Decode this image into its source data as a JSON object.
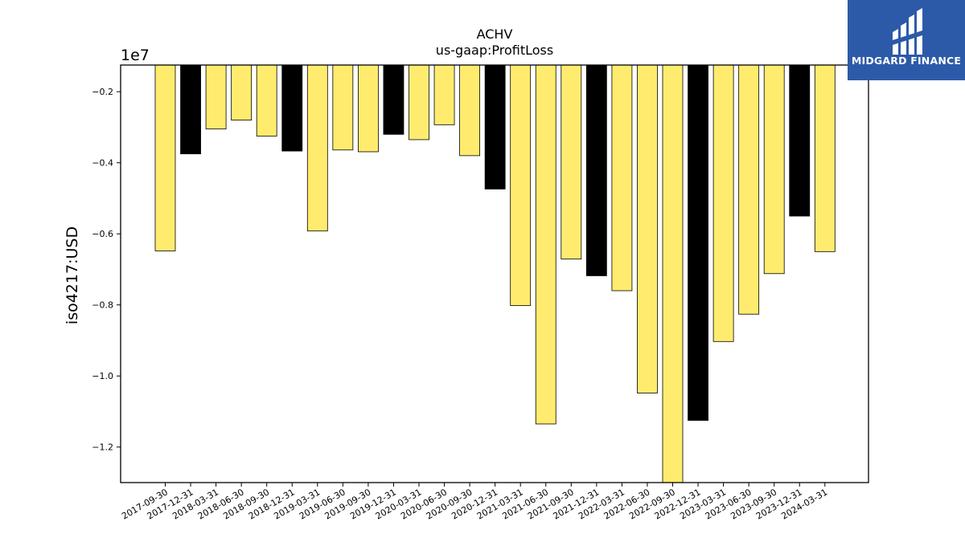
{
  "brand": {
    "name": "MIDGARD FINANCE",
    "logo_icon": "midgard-m-logo-icon",
    "background_color": "#2d5aa8"
  },
  "chart_data": {
    "type": "bar",
    "title": "ACHV",
    "subtitle": "us-gaap:ProfitLoss",
    "ylabel": "iso4217:USD",
    "xlabel": "",
    "y_offset_label": "1e7",
    "y_scale": 10000000,
    "ylim": [
      -1.3,
      -0.125
    ],
    "yticks": [
      -0.2,
      -0.4,
      -0.6,
      -0.8,
      -1.0,
      -1.2
    ],
    "ytick_labels": [
      "−0.2",
      "−0.4",
      "−0.6",
      "−0.8",
      "−1.0",
      "−1.2"
    ],
    "grid": false,
    "colors": {
      "q": "#ffec6e",
      "fy": "#000000"
    },
    "categories": [
      "2017-09-30",
      "2017-12-31",
      "2018-03-31",
      "2018-06-30",
      "2018-09-30",
      "2018-12-31",
      "2019-03-31",
      "2019-06-30",
      "2019-09-30",
      "2019-12-31",
      "2020-03-31",
      "2020-06-30",
      "2020-09-30",
      "2020-12-31",
      "2021-03-31",
      "2021-06-30",
      "2021-09-30",
      "2021-12-31",
      "2022-03-31",
      "2022-06-30",
      "2022-09-30",
      "2022-12-31",
      "2023-03-31",
      "2023-06-30",
      "2023-09-30",
      "2023-12-31",
      "2024-03-31"
    ],
    "values": [
      -0.648,
      -0.375,
      -0.305,
      -0.28,
      -0.325,
      -0.367,
      -0.592,
      -0.364,
      -0.369,
      -0.32,
      -0.335,
      -0.293,
      -0.38,
      -0.474,
      -0.802,
      -1.135,
      -0.671,
      -0.718,
      -0.76,
      -1.048,
      -1.3,
      -1.125,
      -0.903,
      -0.826,
      -0.712,
      -0.55,
      -0.65
    ],
    "bar_colors": [
      "q",
      "fy",
      "q",
      "q",
      "q",
      "fy",
      "q",
      "q",
      "q",
      "fy",
      "q",
      "q",
      "q",
      "fy",
      "q",
      "q",
      "q",
      "fy",
      "q",
      "q",
      "q",
      "fy",
      "q",
      "q",
      "q",
      "fy",
      "q"
    ]
  }
}
